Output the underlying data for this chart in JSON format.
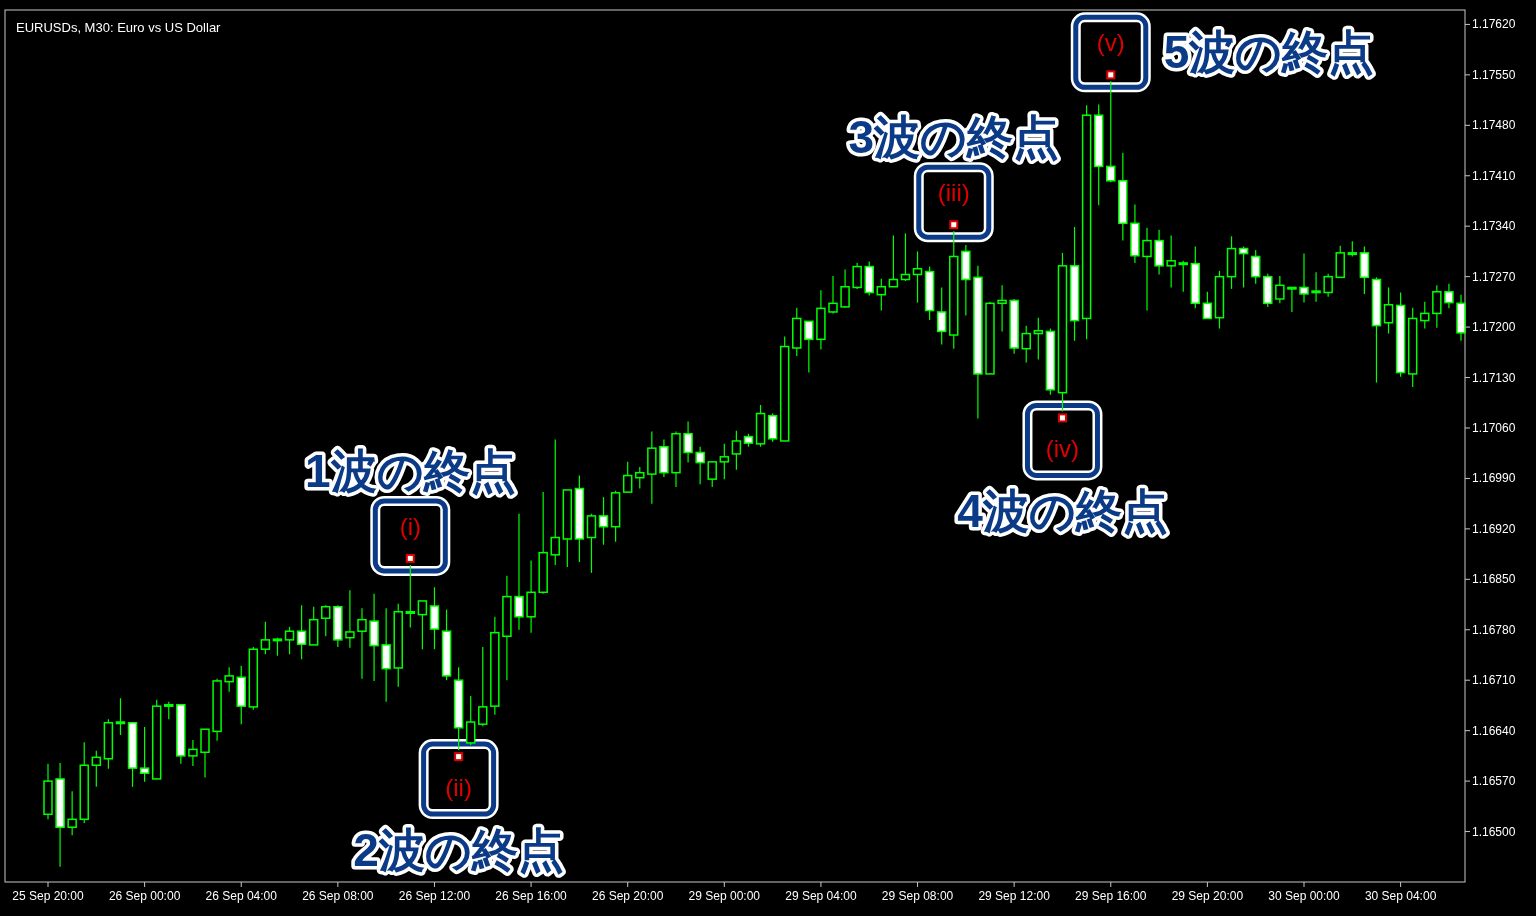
{
  "chart_data": {
    "type": "candlestick",
    "title": "EURUSDs, M30:  Euro vs US Dollar",
    "categories": [
      "25 Sep 20:00",
      null,
      null,
      null,
      null,
      null,
      null,
      null,
      "26 Sep 00:00",
      null,
      null,
      null,
      null,
      null,
      null,
      null,
      "26 Sep 04:00",
      null,
      null,
      null,
      null,
      null,
      null,
      null,
      "26 Sep 08:00",
      null,
      null,
      null,
      null,
      null,
      null,
      null,
      "26 Sep 12:00",
      null,
      null,
      null,
      null,
      null,
      null,
      null,
      "26 Sep 16:00",
      null,
      null,
      null,
      null,
      null,
      null,
      null,
      "26 Sep 20:00",
      null,
      null,
      null,
      null,
      null,
      null,
      null,
      "29 Sep 00:00",
      null,
      null,
      null,
      null,
      null,
      null,
      null,
      "29 Sep 04:00",
      null,
      null,
      null,
      null,
      null,
      null,
      null,
      "29 Sep 08:00",
      null,
      null,
      null,
      null,
      null,
      null,
      null,
      "29 Sep 12:00",
      null,
      null,
      null,
      null,
      null,
      null,
      null,
      "29 Sep 16:00",
      null,
      null,
      null,
      null,
      null,
      null,
      null,
      "29 Sep 20:00",
      null,
      null,
      null,
      null,
      null,
      null,
      null,
      "30 Sep 00:00",
      null,
      null,
      null,
      null,
      null,
      null,
      null,
      "30 Sep 04:00",
      null,
      null,
      null,
      null,
      null
    ],
    "ohlc": [
      [
        1.16524,
        1.16594,
        1.16517,
        1.1657
      ],
      [
        1.16573,
        1.16595,
        1.16451,
        1.16506
      ],
      [
        1.16506,
        1.16556,
        1.16495,
        1.16517
      ],
      [
        1.16517,
        1.16624,
        1.16512,
        1.16592
      ],
      [
        1.16592,
        1.16612,
        1.16562,
        1.16603
      ],
      [
        1.16601,
        1.16656,
        1.16587,
        1.16651
      ],
      [
        1.16651,
        1.16685,
        1.16634,
        1.16652
      ],
      [
        1.16651,
        1.16651,
        1.16562,
        1.16588
      ],
      [
        1.16588,
        1.16645,
        1.16569,
        1.16581
      ],
      [
        1.16573,
        1.16683,
        1.16573,
        1.16674
      ],
      [
        1.16674,
        1.1668,
        1.16656,
        1.16676
      ],
      [
        1.16676,
        1.16676,
        1.16594,
        1.16605
      ],
      [
        1.16605,
        1.16627,
        1.16591,
        1.16614
      ],
      [
        1.1661,
        1.16642,
        1.16575,
        1.16642
      ],
      [
        1.16639,
        1.16712,
        1.16626,
        1.16709
      ],
      [
        1.16708,
        1.16728,
        1.16694,
        1.16716
      ],
      [
        1.16714,
        1.1673,
        1.16649,
        1.16674
      ],
      [
        1.16673,
        1.16756,
        1.16669,
        1.16753
      ],
      [
        1.16753,
        1.16791,
        1.16746,
        1.16766
      ],
      [
        1.16766,
        1.16769,
        1.16744,
        1.16767
      ],
      [
        1.16766,
        1.16784,
        1.16746,
        1.16778
      ],
      [
        1.16778,
        1.16814,
        1.16739,
        1.1676
      ],
      [
        1.16759,
        1.16812,
        1.16759,
        1.16794
      ],
      [
        1.16796,
        1.16814,
        1.16771,
        1.16812
      ],
      [
        1.16812,
        1.16814,
        1.16756,
        1.16766
      ],
      [
        1.16769,
        1.16835,
        1.16755,
        1.16777
      ],
      [
        1.16778,
        1.1681,
        1.16712,
        1.16794
      ],
      [
        1.16792,
        1.1683,
        1.16709,
        1.16758
      ],
      [
        1.16759,
        1.1681,
        1.1668,
        1.16726
      ],
      [
        1.16727,
        1.16816,
        1.16701,
        1.16805
      ],
      [
        1.16803,
        1.1687,
        1.16783,
        1.16805
      ],
      [
        1.16801,
        1.1682,
        1.16753,
        1.1682
      ],
      [
        1.16813,
        1.16839,
        1.16753,
        1.16781
      ],
      [
        1.16778,
        1.16808,
        1.1671,
        1.16716
      ],
      [
        1.1671,
        1.16728,
        1.16613,
        1.16644
      ],
      [
        1.16623,
        1.16688,
        1.1662,
        1.16652
      ],
      [
        1.16649,
        1.16756,
        1.16646,
        1.16673
      ],
      [
        1.16674,
        1.16798,
        1.16662,
        1.16776
      ],
      [
        1.16771,
        1.16855,
        1.1671,
        1.16826
      ],
      [
        1.16826,
        1.16941,
        1.1678,
        1.16798
      ],
      [
        1.16798,
        1.16876,
        1.16776,
        1.16832
      ],
      [
        1.16832,
        1.16971,
        1.1683,
        1.16887
      ],
      [
        1.16884,
        1.17044,
        1.1687,
        1.16908
      ],
      [
        1.16906,
        1.16974,
        1.16867,
        1.16974
      ],
      [
        1.16976,
        1.16994,
        1.16874,
        1.16906
      ],
      [
        1.16908,
        1.16941,
        1.16859,
        1.16938
      ],
      [
        1.16938,
        1.16964,
        1.16898,
        1.16923
      ],
      [
        1.16923,
        1.16973,
        1.16902,
        1.1697
      ],
      [
        1.16971,
        1.17013,
        1.1697,
        1.16994
      ],
      [
        1.16991,
        1.17006,
        1.16976,
        1.16998
      ],
      [
        1.16996,
        1.17055,
        1.16955,
        1.17032
      ],
      [
        1.17034,
        1.17044,
        1.16992,
        1.16998
      ],
      [
        1.16998,
        1.17055,
        1.16978,
        1.17052
      ],
      [
        1.17052,
        1.17069,
        1.17012,
        1.17026
      ],
      [
        1.17026,
        1.17034,
        1.16982,
        1.17012
      ],
      [
        1.16989,
        1.17013,
        1.16978,
        1.17013
      ],
      [
        1.17013,
        1.17038,
        1.16989,
        1.1702
      ],
      [
        1.17024,
        1.17056,
        1.17002,
        1.17042
      ],
      [
        1.17048,
        1.17052,
        1.17034,
        1.17039
      ],
      [
        1.17038,
        1.17092,
        1.17034,
        1.1708
      ],
      [
        1.17077,
        1.1708,
        1.17041,
        1.17045
      ],
      [
        1.17042,
        1.17187,
        1.17042,
        1.17173
      ],
      [
        1.17171,
        1.17227,
        1.1716,
        1.17212
      ],
      [
        1.17208,
        1.17208,
        1.17137,
        1.17183
      ],
      [
        1.17183,
        1.17251,
        1.17169,
        1.17226
      ],
      [
        1.17221,
        1.17271,
        1.17219,
        1.17233
      ],
      [
        1.17228,
        1.1728,
        1.17227,
        1.17256
      ],
      [
        1.17255,
        1.17289,
        1.17253,
        1.17284
      ],
      [
        1.17284,
        1.17291,
        1.17244,
        1.17248
      ],
      [
        1.17245,
        1.17267,
        1.17223,
        1.17256
      ],
      [
        1.17256,
        1.17327,
        1.17256,
        1.17266
      ],
      [
        1.17266,
        1.1733,
        1.17264,
        1.17273
      ],
      [
        1.17273,
        1.17305,
        1.17234,
        1.17281
      ],
      [
        1.17277,
        1.17284,
        1.1721,
        1.17223
      ],
      [
        1.17221,
        1.17255,
        1.17176,
        1.17194
      ],
      [
        1.17189,
        1.17333,
        1.1717,
        1.17298
      ],
      [
        1.17305,
        1.17314,
        1.17216,
        1.17266
      ],
      [
        1.17269,
        1.17285,
        1.17073,
        1.17135
      ],
      [
        1.17135,
        1.17235,
        1.17135,
        1.17233
      ],
      [
        1.17233,
        1.17258,
        1.17194,
        1.17237
      ],
      [
        1.17237,
        1.17239,
        1.17163,
        1.17171
      ],
      [
        1.1717,
        1.17202,
        1.17151,
        1.17191
      ],
      [
        1.17191,
        1.17213,
        1.17155,
        1.17195
      ],
      [
        1.17194,
        1.17198,
        1.17106,
        1.17113
      ],
      [
        1.17109,
        1.17303,
        1.17083,
        1.17285
      ],
      [
        1.17285,
        1.17339,
        1.17181,
        1.17209
      ],
      [
        1.17212,
        1.17508,
        1.17183,
        1.17494
      ],
      [
        1.17494,
        1.17509,
        1.17369,
        1.17423
      ],
      [
        1.17423,
        1.17541,
        1.17401,
        1.17403
      ],
      [
        1.17403,
        1.17442,
        1.1732,
        1.17344
      ],
      [
        1.17344,
        1.1737,
        1.17289,
        1.17299
      ],
      [
        1.17298,
        1.17338,
        1.17223,
        1.1732
      ],
      [
        1.1732,
        1.17335,
        1.17273,
        1.17285
      ],
      [
        1.17285,
        1.17327,
        1.17255,
        1.17292
      ],
      [
        1.17289,
        1.17292,
        1.17249,
        1.17288
      ],
      [
        1.17288,
        1.17312,
        1.17226,
        1.17233
      ],
      [
        1.17233,
        1.17249,
        1.17212,
        1.17212
      ],
      [
        1.17213,
        1.17278,
        1.17198,
        1.1727
      ],
      [
        1.1727,
        1.17326,
        1.17253,
        1.17309
      ],
      [
        1.17309,
        1.17312,
        1.17255,
        1.17302
      ],
      [
        1.17298,
        1.17307,
        1.1726,
        1.1727
      ],
      [
        1.1727,
        1.17274,
        1.17228,
        1.17233
      ],
      [
        1.17239,
        1.17271,
        1.17233,
        1.17258
      ],
      [
        1.17255,
        1.17255,
        1.17221,
        1.17253
      ],
      [
        1.17255,
        1.17302,
        1.17234,
        1.17246
      ],
      [
        1.17249,
        1.17276,
        1.17235,
        1.1725
      ],
      [
        1.17248,
        1.17274,
        1.17242,
        1.1727
      ],
      [
        1.17269,
        1.17313,
        1.17269,
        1.17303
      ],
      [
        1.17303,
        1.17319,
        1.17298,
        1.17302
      ],
      [
        1.17303,
        1.17312,
        1.17246,
        1.17269
      ],
      [
        1.17266,
        1.17269,
        1.17123,
        1.17202
      ],
      [
        1.17206,
        1.17255,
        1.17191,
        1.17231
      ],
      [
        1.1723,
        1.17248,
        1.17131,
        1.17137
      ],
      [
        1.17135,
        1.17227,
        1.17117,
        1.17212
      ],
      [
        1.17209,
        1.17235,
        1.17198,
        1.17219
      ],
      [
        1.17219,
        1.17258,
        1.17199,
        1.17249
      ],
      [
        1.17249,
        1.1726,
        1.17226,
        1.17234
      ],
      [
        1.17233,
        1.17245,
        1.17181,
        1.17192
      ]
    ],
    "ylim": [
      1.1643,
      1.1764
    ],
    "yticks": [
      {
        "value": 1.165,
        "label": "1.16500"
      },
      {
        "value": 1.1657,
        "label": "1.16570"
      },
      {
        "value": 1.1664,
        "label": "1.16640"
      },
      {
        "value": 1.1671,
        "label": "1.16710"
      },
      {
        "value": 1.1678,
        "label": "1.16780"
      },
      {
        "value": 1.1685,
        "label": "1.16850"
      },
      {
        "value": 1.1692,
        "label": "1.16920"
      },
      {
        "value": 1.1699,
        "label": "1.16990"
      },
      {
        "value": 1.1706,
        "label": "1.17060"
      },
      {
        "value": 1.1713,
        "label": "1.17130"
      },
      {
        "value": 1.172,
        "label": "1.17200"
      },
      {
        "value": 1.1727,
        "label": "1.17270"
      },
      {
        "value": 1.1734,
        "label": "1.17340"
      },
      {
        "value": 1.1741,
        "label": "1.17410"
      },
      {
        "value": 1.1748,
        "label": "1.17480"
      },
      {
        "value": 1.1755,
        "label": "1.17550"
      },
      {
        "value": 1.1762,
        "label": "1.17620"
      }
    ],
    "annotations": [
      {
        "text": "(i)",
        "y": 1.1687
      },
      "1波の終点",
      {
        "text": "(ii)",
        "y": 1.16613
      },
      "2波の終点",
      {
        "text": "(iii)",
        "y": 1.17333
      },
      "3波の終点",
      {
        "text": "(iv)",
        "y": 1.17083
      },
      "4波の終点",
      {
        "text": "(v)",
        "y": 1.17541
      },
      "5波の終点"
    ]
  }
}
